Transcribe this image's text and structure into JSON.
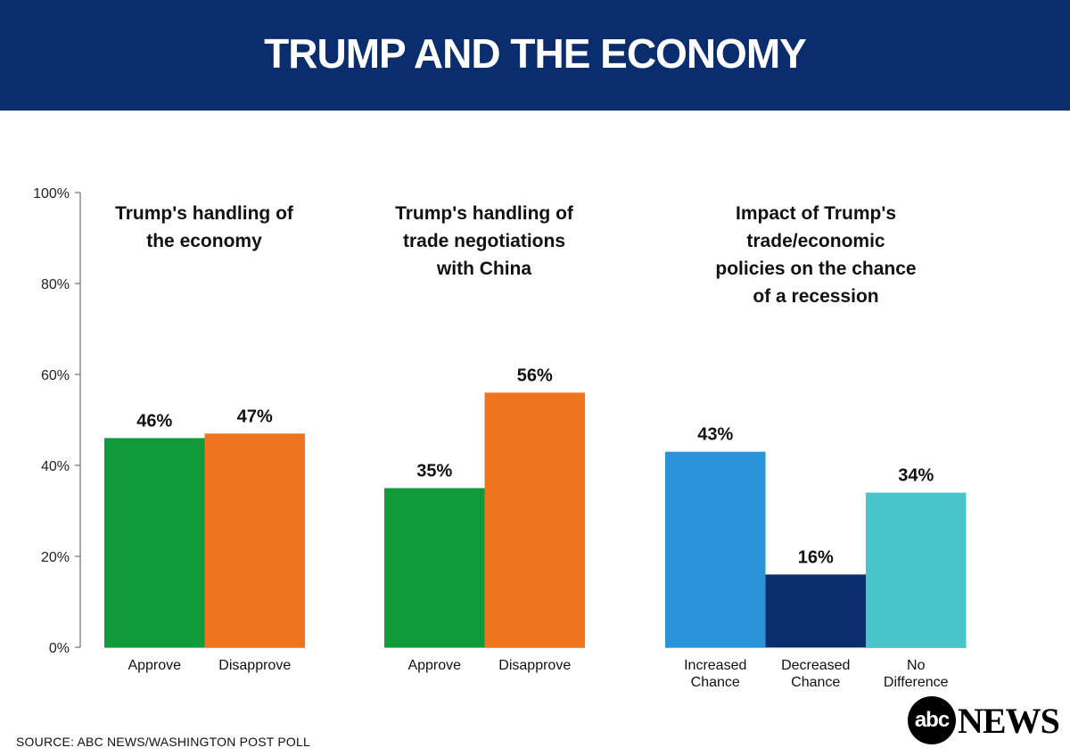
{
  "header": {
    "title": "TRUMP AND THE ECONOMY"
  },
  "source": "SOURCE: ABC NEWS/WASHINGTON POST POLL",
  "logo": {
    "circle_text": "abc",
    "word": "NEWS"
  },
  "chart_data": {
    "type": "bar",
    "ylim": [
      0,
      100
    ],
    "yticks": [
      0,
      20,
      40,
      60,
      80,
      100
    ],
    "ytick_labels": [
      "0%",
      "20%",
      "40%",
      "60%",
      "80%",
      "100%"
    ],
    "grid": false,
    "groups": [
      {
        "title_lines": [
          "Trump's handling of",
          "the economy"
        ],
        "bars": [
          {
            "category": "Approve",
            "value": 46,
            "label": "46%",
            "color": "#109a3a"
          },
          {
            "category": "Disapprove",
            "value": 47,
            "label": "47%",
            "color": "#ef741e"
          }
        ]
      },
      {
        "title_lines": [
          "Trump's handling of",
          "trade negotiations",
          "with China"
        ],
        "bars": [
          {
            "category": "Approve",
            "value": 35,
            "label": "35%",
            "color": "#109a3a"
          },
          {
            "category": "Disapprove",
            "value": 56,
            "label": "56%",
            "color": "#ef741e"
          }
        ]
      },
      {
        "title_lines": [
          "Impact of Trump's",
          "trade/economic",
          "policies on the chance",
          "of a recession"
        ],
        "bars": [
          {
            "category": "Increased\nChance",
            "value": 43,
            "label": "43%",
            "color": "#2b93d8"
          },
          {
            "category": "Decreased\nChance",
            "value": 16,
            "label": "16%",
            "color": "#0a2d6e"
          },
          {
            "category": "No\nDifference",
            "value": 34,
            "label": "34%",
            "color": "#48c4cb"
          }
        ]
      }
    ]
  }
}
